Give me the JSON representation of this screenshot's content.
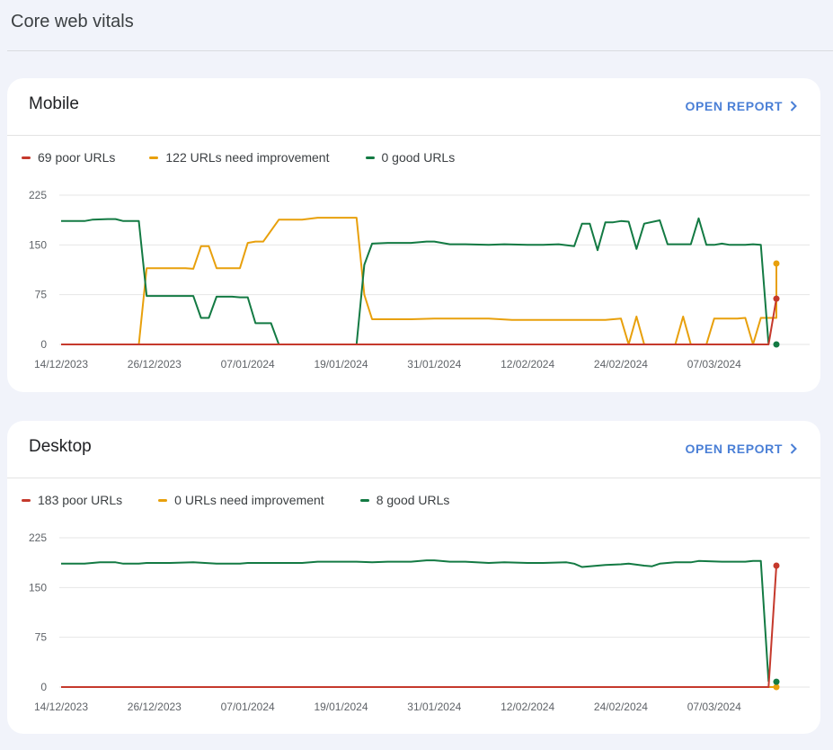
{
  "page": {
    "title": "Core web vitals"
  },
  "colors": {
    "poor": "#c5392c",
    "needs_improvement": "#e8a00c",
    "good": "#137a43",
    "link": "#4a7fd6"
  },
  "icons": {
    "open_report": "chevron-right-icon"
  },
  "mobile": {
    "title": "Mobile",
    "open_report_label": "OPEN REPORT",
    "legend": {
      "poor": "69 poor URLs",
      "needs_improvement": "122 URLs need improvement",
      "good": "0 good URLs"
    }
  },
  "desktop": {
    "title": "Desktop",
    "open_report_label": "OPEN REPORT",
    "legend": {
      "poor": "183 poor URLs",
      "needs_improvement": "0 URLs need improvement",
      "good": "8 good URLs"
    }
  },
  "chart_data": [
    {
      "type": "line",
      "x_start": "14/12/2023",
      "x_labels": [
        "14/12/2023",
        "26/12/2023",
        "07/01/2024",
        "19/01/2024",
        "31/01/2024",
        "12/02/2024",
        "24/02/2024",
        "07/03/2024"
      ],
      "y_ticks": [
        0,
        75,
        150,
        225
      ],
      "ylim": [
        0,
        225
      ],
      "x_range_days": [
        0,
        92
      ],
      "grid": true,
      "legend_position": "top-left",
      "series": [
        {
          "key": "poor",
          "name": "69 poor URLs",
          "color": "#c5392c",
          "points": [
            [
              0,
              0
            ],
            [
              91,
              0
            ],
            [
              92,
              69
            ]
          ]
        },
        {
          "key": "needs_improvement",
          "name": "122 URLs need improvement",
          "color": "#e8a00c",
          "points": [
            [
              0,
              0
            ],
            [
              10,
              0
            ],
            [
              11,
              115
            ],
            [
              16,
              115
            ],
            [
              17,
              114
            ],
            [
              18,
              148
            ],
            [
              19,
              148
            ],
            [
              20,
              115
            ],
            [
              23,
              115
            ],
            [
              24,
              153
            ],
            [
              25,
              155
            ],
            [
              26,
              155
            ],
            [
              28,
              188
            ],
            [
              31,
              188
            ],
            [
              33,
              191
            ],
            [
              38,
              191
            ],
            [
              39,
              75
            ],
            [
              40,
              38
            ],
            [
              45,
              38
            ],
            [
              48,
              39
            ],
            [
              55,
              39
            ],
            [
              58,
              37
            ],
            [
              62,
              37
            ],
            [
              70,
              37
            ],
            [
              72,
              39
            ],
            [
              73,
              0
            ],
            [
              74,
              42
            ],
            [
              75,
              0
            ],
            [
              79,
              0
            ],
            [
              80,
              42
            ],
            [
              81,
              0
            ],
            [
              83,
              0
            ],
            [
              84,
              39
            ],
            [
              87,
              39
            ],
            [
              88,
              40
            ],
            [
              89,
              0
            ],
            [
              90,
              40
            ],
            [
              92,
              40
            ],
            [
              93,
              41
            ],
            [
              96,
              41
            ],
            [
              97,
              122
            ]
          ]
        },
        {
          "key": "good",
          "name": "0 good URLs",
          "color": "#137a43",
          "points": [
            [
              0,
              186
            ],
            [
              3,
              186
            ],
            [
              4,
              188
            ],
            [
              6,
              189
            ],
            [
              7,
              189
            ],
            [
              8,
              186
            ],
            [
              10,
              186
            ],
            [
              11,
              73
            ],
            [
              17,
              73
            ],
            [
              18,
              40
            ],
            [
              19,
              40
            ],
            [
              20,
              72
            ],
            [
              22,
              72
            ],
            [
              23,
              71
            ],
            [
              24,
              71
            ],
            [
              25,
              32
            ],
            [
              27,
              32
            ],
            [
              28,
              0
            ],
            [
              38,
              0
            ],
            [
              39,
              120
            ],
            [
              40,
              152
            ],
            [
              42,
              153
            ],
            [
              45,
              153
            ],
            [
              47,
              155
            ],
            [
              48,
              155
            ],
            [
              50,
              151
            ],
            [
              52,
              151
            ],
            [
              55,
              150
            ],
            [
              57,
              151
            ],
            [
              60,
              150
            ],
            [
              62,
              150
            ],
            [
              64,
              151
            ],
            [
              66,
              148
            ],
            [
              67,
              182
            ],
            [
              68,
              182
            ],
            [
              69,
              142
            ],
            [
              70,
              184
            ],
            [
              71,
              184
            ],
            [
              72,
              186
            ],
            [
              73,
              185
            ],
            [
              74,
              144
            ],
            [
              75,
              182
            ],
            [
              77,
              187
            ],
            [
              78,
              151
            ],
            [
              81,
              151
            ],
            [
              82,
              190
            ],
            [
              83,
              150
            ],
            [
              84,
              150
            ],
            [
              85,
              152
            ],
            [
              86,
              150
            ],
            [
              88,
              150
            ],
            [
              89,
              151
            ],
            [
              90,
              150
            ],
            [
              91,
              0
            ]
          ]
        }
      ]
    },
    {
      "type": "line",
      "x_start": "14/12/2023",
      "x_labels": [
        "14/12/2023",
        "26/12/2023",
        "07/01/2024",
        "19/01/2024",
        "31/01/2024",
        "12/02/2024",
        "24/02/2024",
        "07/03/2024"
      ],
      "y_ticks": [
        0,
        75,
        150,
        225
      ],
      "ylim": [
        0,
        225
      ],
      "x_range_days": [
        0,
        92
      ],
      "grid": true,
      "legend_position": "top-left",
      "series": [
        {
          "key": "poor",
          "name": "183 poor URLs",
          "color": "#c5392c",
          "points": [
            [
              0,
              0
            ],
            [
              91,
              0
            ],
            [
              92,
              183
            ]
          ]
        },
        {
          "key": "needs_improvement",
          "name": "0 URLs need improvement",
          "color": "#e8a00c",
          "points": [
            [
              0,
              0
            ],
            [
              92,
              0
            ]
          ]
        },
        {
          "key": "good",
          "name": "8 good URLs",
          "color": "#137a43",
          "points": [
            [
              0,
              186
            ],
            [
              3,
              186
            ],
            [
              5,
              188
            ],
            [
              7,
              188
            ],
            [
              8,
              186
            ],
            [
              10,
              186
            ],
            [
              11,
              187
            ],
            [
              14,
              187
            ],
            [
              17,
              188
            ],
            [
              20,
              186
            ],
            [
              23,
              186
            ],
            [
              24,
              187
            ],
            [
              27,
              187
            ],
            [
              31,
              187
            ],
            [
              33,
              189
            ],
            [
              38,
              189
            ],
            [
              40,
              188
            ],
            [
              42,
              189
            ],
            [
              45,
              189
            ],
            [
              47,
              191
            ],
            [
              48,
              191
            ],
            [
              50,
              189
            ],
            [
              52,
              189
            ],
            [
              55,
              187
            ],
            [
              57,
              188
            ],
            [
              60,
              187
            ],
            [
              62,
              187
            ],
            [
              65,
              188
            ],
            [
              66,
              186
            ],
            [
              67,
              181
            ],
            [
              68,
              182
            ],
            [
              70,
              184
            ],
            [
              72,
              185
            ],
            [
              73,
              186
            ],
            [
              75,
              183
            ],
            [
              76,
              182
            ],
            [
              77,
              186
            ],
            [
              79,
              188
            ],
            [
              81,
              188
            ],
            [
              82,
              190
            ],
            [
              85,
              189
            ],
            [
              88,
              189
            ],
            [
              89,
              190
            ],
            [
              90,
              190
            ],
            [
              91,
              8
            ]
          ]
        }
      ]
    }
  ]
}
